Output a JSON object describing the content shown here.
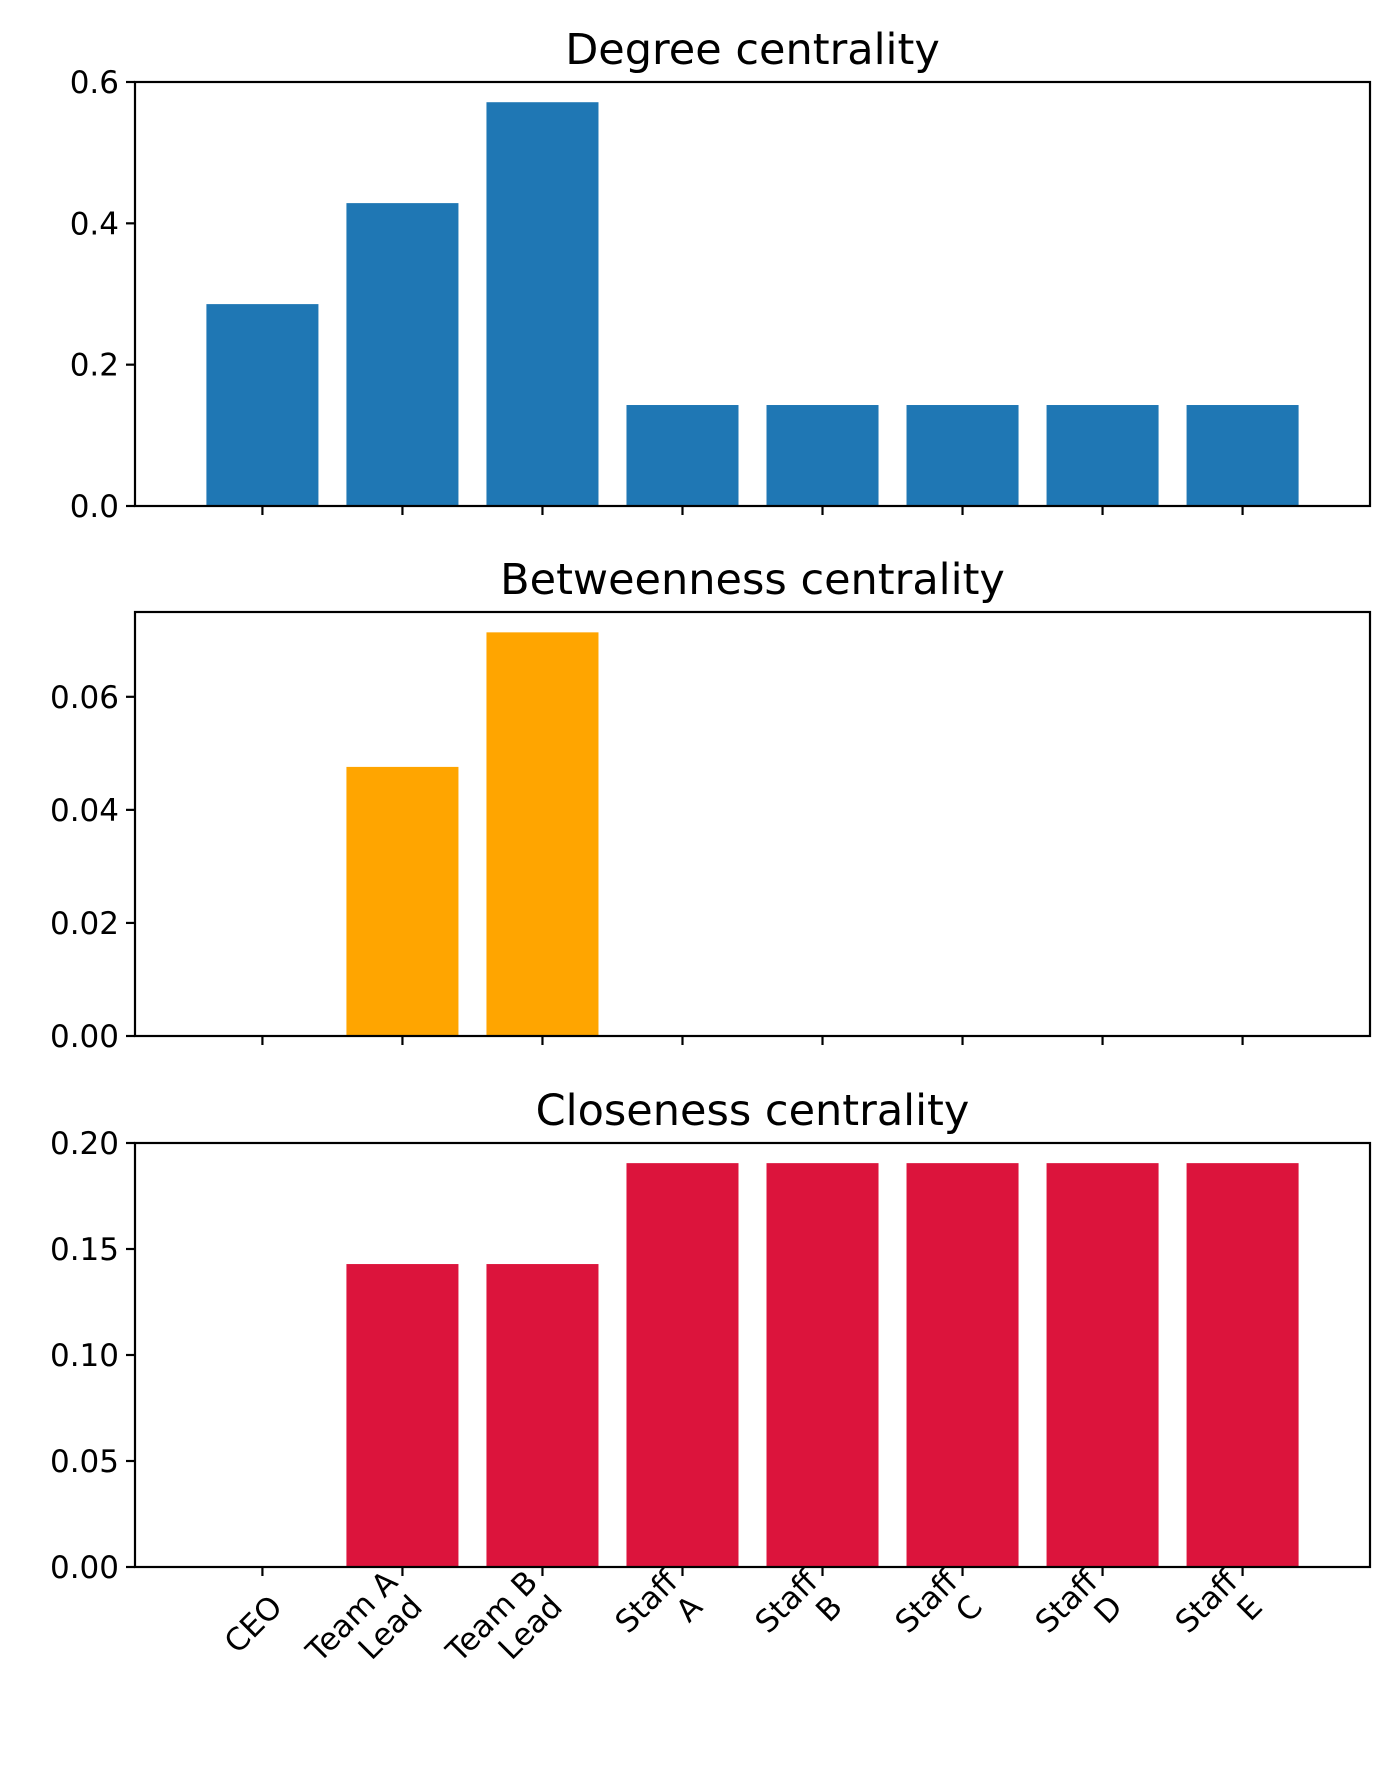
{
  "chart_data": [
    {
      "type": "bar",
      "title": "Degree centrality",
      "categories": [
        "CEO",
        "Team A\nLead",
        "Team B\nLead",
        "Staff\nA",
        "Staff\nB",
        "Staff\nC",
        "Staff\nD",
        "Staff\nE"
      ],
      "values": [
        0.2857,
        0.4286,
        0.5714,
        0.1429,
        0.1429,
        0.1429,
        0.1429,
        0.1429
      ],
      "color": "#1f77b4",
      "ylim": [
        0,
        0.6
      ],
      "yticks": [
        "0.0",
        "0.2",
        "0.4",
        "0.6"
      ],
      "xlabel": "",
      "ylabel": "",
      "show_xticklabels": false,
      "grid": false
    },
    {
      "type": "bar",
      "title": "Betweenness centrality",
      "categories": [
        "CEO",
        "Team A\nLead",
        "Team B\nLead",
        "Staff\nA",
        "Staff\nB",
        "Staff\nC",
        "Staff\nD",
        "Staff\nE"
      ],
      "values": [
        0,
        0.0476,
        0.0714,
        0,
        0,
        0,
        0,
        0
      ],
      "color": "#ffa500",
      "ylim": [
        0,
        0.075
      ],
      "yticks": [
        "0.00",
        "0.02",
        "0.04",
        "0.06"
      ],
      "xlabel": "",
      "ylabel": "",
      "show_xticklabels": false,
      "grid": false
    },
    {
      "type": "bar",
      "title": "Closeness centrality",
      "categories": [
        "CEO",
        "Team A\nLead",
        "Team B\nLead",
        "Staff\nA",
        "Staff\nB",
        "Staff\nC",
        "Staff\nD",
        "Staff\nE"
      ],
      "values": [
        0,
        0.1429,
        0.1429,
        0.1905,
        0.1905,
        0.1905,
        0.1905,
        0.1905
      ],
      "color": "#dc143c",
      "ylim": [
        0,
        0.2
      ],
      "yticks": [
        "0.00",
        "0.05",
        "0.10",
        "0.15",
        "0.20"
      ],
      "xlabel": "",
      "ylabel": "",
      "show_xticklabels": true,
      "xtick_rotation": 45,
      "grid": false
    }
  ]
}
